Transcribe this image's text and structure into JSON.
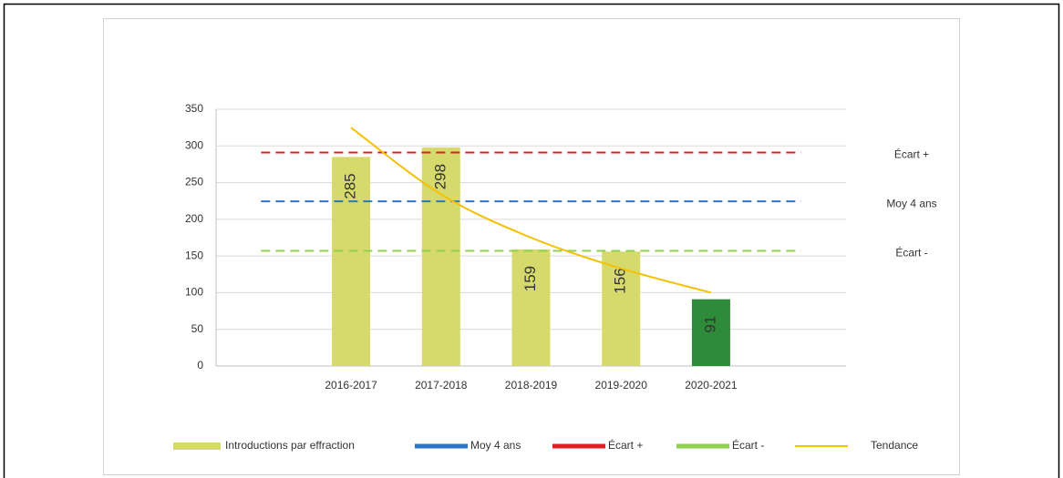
{
  "chart_data": {
    "type": "bar",
    "categories": [
      null,
      "2016-2017",
      "2017-2018",
      "2018-2019",
      "2019-2020",
      "2020-2021",
      null
    ],
    "series": [
      {
        "name": "Introductions par effraction",
        "type": "bar",
        "color": "#d6da6c",
        "colors": [
          null,
          "#d6da6c",
          "#d6da6c",
          "#d6da6c",
          "#d6da6c",
          "#2e8b3a",
          null
        ],
        "values": [
          null,
          285,
          298,
          159,
          156,
          91,
          null
        ]
      },
      {
        "name": "Moy 4 ans",
        "type": "line",
        "dashed": true,
        "color": "#2e75c6",
        "values": [
          224.5,
          224.5,
          224.5,
          224.5,
          224.5,
          224.5,
          224.5
        ]
      },
      {
        "name": "Écart +",
        "type": "line",
        "dashed": true,
        "color": "#e02020",
        "values": [
          291,
          291,
          291,
          291,
          291,
          291,
          291
        ]
      },
      {
        "name": "Écart -",
        "type": "line",
        "dashed": true,
        "color": "#92d050",
        "values": [
          157,
          157,
          157,
          157,
          157,
          157,
          157
        ]
      },
      {
        "name": "Tendance",
        "type": "line",
        "smooth": true,
        "color": "#f5c000",
        "values": [
          null,
          325,
          234,
          175,
          133,
          100,
          null
        ]
      }
    ],
    "ylim": [
      0,
      350
    ],
    "yticks": [
      0,
      50,
      100,
      150,
      200,
      250,
      300,
      350
    ],
    "grid": true
  }
}
